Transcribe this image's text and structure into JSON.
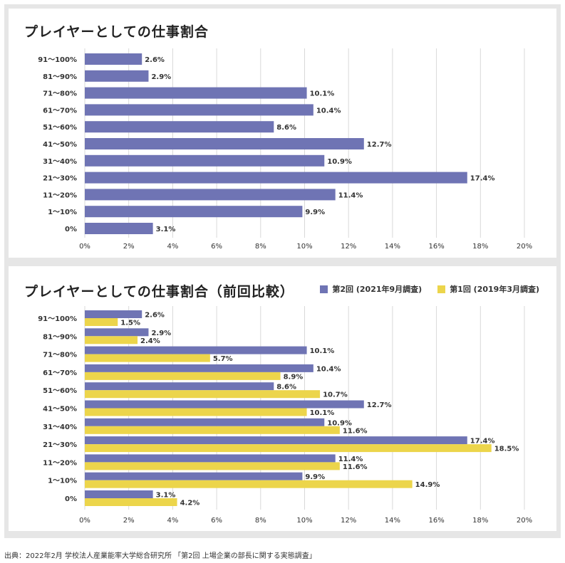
{
  "colors": {
    "round2": "#6f74b4",
    "round1": "#ecd54b",
    "value_label": "#333333",
    "grid": "#d9d9d9"
  },
  "chart_data": [
    {
      "type": "bar",
      "orientation": "horizontal",
      "title": "プレイヤーとしての仕事割合",
      "categories": [
        "91〜100%",
        "81〜90%",
        "71〜80%",
        "61〜70%",
        "51〜60%",
        "41〜50%",
        "31〜40%",
        "21〜30%",
        "11〜20%",
        "1〜10%",
        "0%"
      ],
      "series": [
        {
          "name": "第2回 (2021年9月調査)",
          "color_key": "round2",
          "values": [
            2.6,
            2.9,
            10.1,
            10.4,
            8.6,
            12.7,
            10.9,
            17.4,
            11.4,
            9.9,
            3.1
          ],
          "labels": [
            "2.6%",
            "2.9%",
            "10.1%",
            "10.4%",
            "8.6%",
            "12.7%",
            "10.9%",
            "17.4%",
            "11.4%",
            "9.9%",
            "3.1%"
          ]
        }
      ],
      "xlim": [
        0,
        20
      ],
      "xticks": [
        "0%",
        "2%",
        "4%",
        "6%",
        "8%",
        "10%",
        "12%",
        "14%",
        "16%",
        "18%",
        "20%"
      ],
      "grid": "vertical"
    },
    {
      "type": "bar",
      "orientation": "horizontal",
      "title": "プレイヤーとしての仕事割合（前回比較）",
      "categories": [
        "91〜100%",
        "81〜90%",
        "71〜80%",
        "61〜70%",
        "51〜60%",
        "41〜50%",
        "31〜40%",
        "21〜30%",
        "11〜20%",
        "1〜10%",
        "0%"
      ],
      "series": [
        {
          "name": "第2回 (2021年9月調査)",
          "color_key": "round2",
          "values": [
            2.6,
            2.9,
            10.1,
            10.4,
            8.6,
            12.7,
            10.9,
            17.4,
            11.4,
            9.9,
            3.1
          ],
          "labels": [
            "2.6%",
            "2.9%",
            "10.1%",
            "10.4%",
            "8.6%",
            "12.7%",
            "10.9%",
            "17.4%",
            "11.4%",
            "9.9%",
            "3.1%"
          ]
        },
        {
          "name": "第1回 (2019年3月調査)",
          "color_key": "round1",
          "values": [
            1.5,
            2.4,
            5.7,
            8.9,
            10.7,
            10.1,
            11.6,
            18.5,
            11.6,
            14.9,
            4.2
          ],
          "labels": [
            "1.5%",
            "2.4%",
            "5.7%",
            "8.9%",
            "10.7%",
            "10.1%",
            "11.6%",
            "18.5%",
            "11.6%",
            "14.9%",
            "4.2%"
          ]
        }
      ],
      "xlim": [
        0,
        20
      ],
      "xticks": [
        "0%",
        "2%",
        "4%",
        "6%",
        "8%",
        "10%",
        "12%",
        "14%",
        "16%",
        "18%",
        "20%"
      ],
      "grid": "vertical",
      "legend": "top-right"
    }
  ],
  "source": "出典：2022年2月 学校法人産業能率大学総合研究所 「第2回 上場企業の部長に関する実態調査」"
}
